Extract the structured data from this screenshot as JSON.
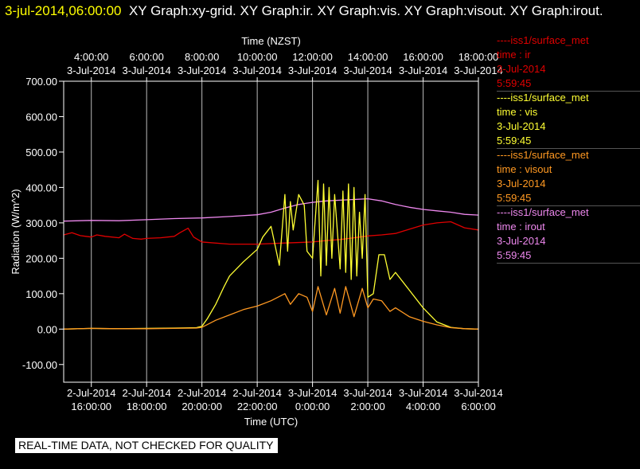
{
  "header": {
    "timestamp": "3-jul-2014,06:00:00",
    "graphs": "XY Graph:xy-grid.  XY Graph:ir.  XY Graph:vis.  XY Graph:visout.  XY Graph:irout."
  },
  "notice": "REAL-TIME DATA, NOT CHECKED FOR QUALITY",
  "legend": [
    {
      "source": "----iss1/surface_met",
      "var": "time : ir",
      "date": "3-Jul-2014",
      "time": "5:59:45",
      "color": "#e00000"
    },
    {
      "source": "----iss1/surface_met",
      "var": "time : vis",
      "date": "3-Jul-2014",
      "time": "5:59:45",
      "color": "#ffff33"
    },
    {
      "source": "----iss1/surface_met",
      "var": "time : visout",
      "date": "3-Jul-2014",
      "time": "5:59:45",
      "color": "#ff9922"
    },
    {
      "source": "----iss1/surface_met",
      "var": "time : irout",
      "date": "3-Jul-2014",
      "time": "5:59:45",
      "color": "#ee88ee"
    }
  ],
  "chart_data": {
    "type": "line",
    "xlabel": "Time (UTC)",
    "x2label": "Time (NZST)",
    "ylabel": "Radiation (W/m^2)",
    "xlim": [
      15.0,
      30.0
    ],
    "ylim": [
      -150,
      700
    ],
    "y_ticks": [
      -100,
      0,
      100,
      200,
      300,
      400,
      500,
      600,
      700
    ],
    "y_tick_labels": [
      "-100.00",
      "0.00",
      "100.00",
      "200.00",
      "300.00",
      "400.00",
      "500.00",
      "600.00",
      "700.00"
    ],
    "x_ticks": [
      {
        "h": 16,
        "date": "2-Jul-2014",
        "time": "16:00:00"
      },
      {
        "h": 18,
        "date": "2-Jul-2014",
        "time": "18:00:00"
      },
      {
        "h": 20,
        "date": "2-Jul-2014",
        "time": "20:00:00"
      },
      {
        "h": 22,
        "date": "2-Jul-2014",
        "time": "22:00:00"
      },
      {
        "h": 24,
        "date": "3-Jul-2014",
        "time": "0:00:00"
      },
      {
        "h": 26,
        "date": "3-Jul-2014",
        "time": "2:00:00"
      },
      {
        "h": 28,
        "date": "3-Jul-2014",
        "time": "4:00:00"
      },
      {
        "h": 30,
        "date": "3-Jul-2014",
        "time": "6:00:00"
      }
    ],
    "x2_ticks": [
      {
        "h": 16,
        "time": "4:00:00",
        "date": "3-Jul-2014"
      },
      {
        "h": 18,
        "time": "6:00:00",
        "date": "3-Jul-2014"
      },
      {
        "h": 20,
        "time": "8:00:00",
        "date": "3-Jul-2014"
      },
      {
        "h": 22,
        "time": "10:00:00",
        "date": "3-Jul-2014"
      },
      {
        "h": 24,
        "time": "12:00:00",
        "date": "3-Jul-2014"
      },
      {
        "h": 26,
        "time": "14:00:00",
        "date": "3-Jul-2014"
      },
      {
        "h": 28,
        "time": "16:00:00",
        "date": "3-Jul-2014"
      },
      {
        "h": 30,
        "time": "18:00:00",
        "date": "3-Jul-2014"
      }
    ],
    "grid": true,
    "series": [
      {
        "var": "irout",
        "color": "#ee88ee",
        "x": [
          15.0,
          16.0,
          17.0,
          18.0,
          19.0,
          20.0,
          21.0,
          22.0,
          22.5,
          23.0,
          23.5,
          24.0,
          24.5,
          25.0,
          25.5,
          26.0,
          26.5,
          27.0,
          27.5,
          28.0,
          28.5,
          29.0,
          29.5,
          30.0
        ],
        "y": [
          305,
          307,
          306,
          309,
          312,
          314,
          318,
          323,
          330,
          342,
          352,
          358,
          362,
          364,
          366,
          368,
          362,
          352,
          344,
          338,
          334,
          330,
          324,
          322
        ]
      },
      {
        "var": "ir",
        "color": "#e00000",
        "x": [
          15.0,
          15.3,
          15.6,
          15.8,
          16.0,
          16.2,
          16.5,
          17.0,
          17.2,
          17.5,
          17.8,
          18.0,
          18.5,
          19.0,
          19.2,
          19.5,
          19.7,
          20.0,
          21.0,
          22.0,
          23.0,
          24.0,
          24.5,
          25.0,
          25.5,
          26.0,
          26.5,
          27.0,
          27.5,
          28.0,
          28.5,
          29.0,
          29.5,
          30.0
        ],
        "y": [
          266,
          272,
          264,
          262,
          260,
          266,
          262,
          258,
          268,
          256,
          254,
          256,
          258,
          262,
          272,
          285,
          260,
          246,
          240,
          240,
          243,
          246,
          250,
          253,
          258,
          263,
          266,
          270,
          282,
          294,
          300,
          303,
          286,
          280
        ]
      },
      {
        "var": "vis",
        "color": "#ffff33",
        "x": [
          15.0,
          16.0,
          17.0,
          18.0,
          19.0,
          19.8,
          20.0,
          20.2,
          20.5,
          20.8,
          21.0,
          21.5,
          22.0,
          22.2,
          22.5,
          22.8,
          23.0,
          23.1,
          23.2,
          23.3,
          23.5,
          23.7,
          23.8,
          24.0,
          24.2,
          24.3,
          24.4,
          24.5,
          24.6,
          24.7,
          24.8,
          25.0,
          25.1,
          25.2,
          25.3,
          25.4,
          25.5,
          25.6,
          25.7,
          25.8,
          25.9,
          26.0,
          26.2,
          26.4,
          26.6,
          26.8,
          27.0,
          27.5,
          28.0,
          28.5,
          29.0,
          29.5,
          30.0
        ],
        "y": [
          0,
          2,
          1,
          2,
          3,
          4,
          8,
          30,
          70,
          120,
          150,
          190,
          225,
          260,
          290,
          180,
          380,
          220,
          360,
          280,
          380,
          350,
          220,
          200,
          420,
          150,
          410,
          180,
          400,
          200,
          380,
          170,
          390,
          160,
          410,
          140,
          400,
          150,
          330,
          200,
          380,
          90,
          100,
          210,
          210,
          140,
          160,
          110,
          60,
          20,
          5,
          1,
          0
        ]
      },
      {
        "var": "visout",
        "color": "#ff9922",
        "x": [
          15.0,
          16.0,
          17.0,
          18.0,
          19.0,
          19.8,
          20.0,
          20.5,
          21.0,
          21.5,
          22.0,
          22.5,
          23.0,
          23.2,
          23.5,
          23.8,
          24.0,
          24.2,
          24.5,
          24.8,
          25.0,
          25.2,
          25.5,
          25.8,
          26.0,
          26.2,
          26.5,
          26.8,
          27.0,
          27.5,
          28.0,
          28.5,
          29.0,
          29.5,
          30.0
        ],
        "y": [
          0,
          2,
          1,
          1,
          2,
          3,
          5,
          25,
          40,
          55,
          65,
          80,
          100,
          70,
          100,
          90,
          50,
          120,
          40,
          115,
          45,
          120,
          35,
          115,
          60,
          85,
          80,
          50,
          60,
          35,
          22,
          12,
          4,
          1,
          0
        ]
      }
    ]
  }
}
